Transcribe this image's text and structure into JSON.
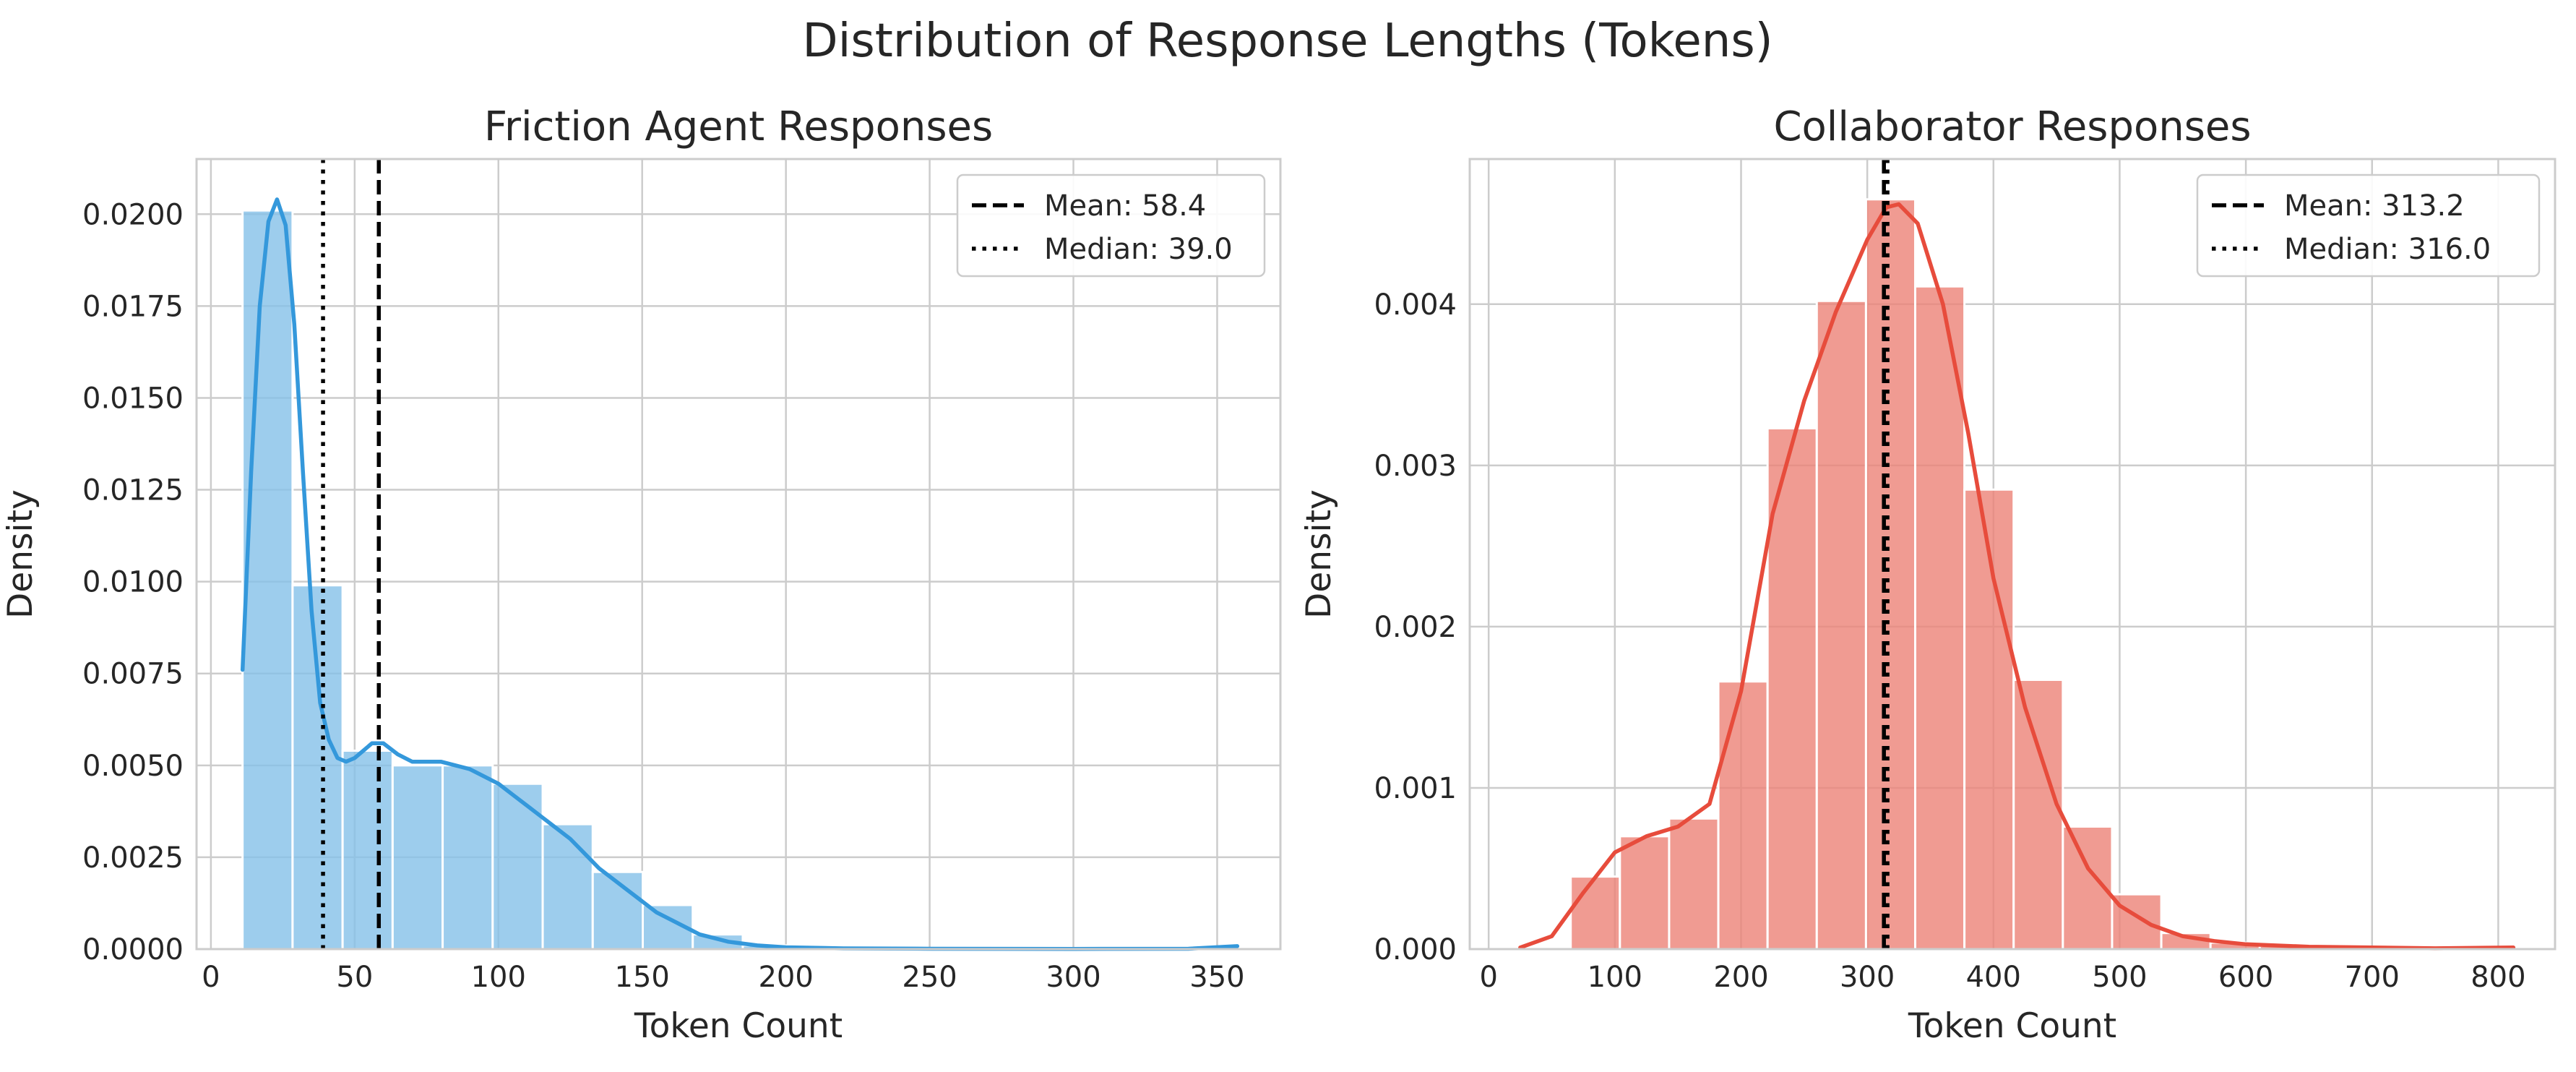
{
  "figure_title": "Distribution of Response Lengths (Tokens)",
  "chart_data": [
    {
      "type": "histogram",
      "title": "Friction Agent Responses",
      "xlabel": "Token Count",
      "ylabel": "Density",
      "xlim": [
        -5,
        372
      ],
      "ylim": [
        0,
        0.0215
      ],
      "xticks": [
        0,
        50,
        100,
        150,
        200,
        250,
        300,
        350
      ],
      "yticks": [
        0,
        0.0025,
        0.005,
        0.0075,
        0.01,
        0.0125,
        0.015,
        0.0175,
        0.02
      ],
      "ytick_decimals": 4,
      "grid": true,
      "legend_position": "top-right",
      "bar_color": "#85c1e9",
      "line_color": "#3498db",
      "bins": [
        {
          "x0": 11,
          "x1": 28.4,
          "density": 0.0201
        },
        {
          "x0": 28.4,
          "x1": 45.8,
          "density": 0.0099
        },
        {
          "x0": 45.8,
          "x1": 63.2,
          "density": 0.0054
        },
        {
          "x0": 63.2,
          "x1": 80.6,
          "density": 0.005
        },
        {
          "x0": 80.6,
          "x1": 98.0,
          "density": 0.005
        },
        {
          "x0": 98.0,
          "x1": 115.4,
          "density": 0.0045
        },
        {
          "x0": 115.4,
          "x1": 132.8,
          "density": 0.0034
        },
        {
          "x0": 132.8,
          "x1": 150.2,
          "density": 0.0021
        },
        {
          "x0": 150.2,
          "x1": 167.6,
          "density": 0.0012
        },
        {
          "x0": 167.6,
          "x1": 185.0,
          "density": 0.0004
        },
        {
          "x0": 185.0,
          "x1": 202.4,
          "density": 0.0001
        },
        {
          "x0": 202.4,
          "x1": 219.8,
          "density": 5e-05
        }
      ],
      "kde": {
        "x": [
          11,
          14,
          17,
          20,
          23,
          26,
          29,
          32,
          35,
          38,
          41,
          44,
          47,
          50,
          53,
          56,
          60,
          65,
          70,
          75,
          80,
          85,
          90,
          95,
          100,
          105,
          110,
          115,
          120,
          125,
          130,
          135,
          140,
          145,
          150,
          155,
          160,
          165,
          170,
          175,
          180,
          190,
          200,
          220,
          250,
          300,
          340,
          357
        ],
        "y": [
          0.0076,
          0.013,
          0.0175,
          0.0198,
          0.0204,
          0.0197,
          0.017,
          0.013,
          0.0092,
          0.0067,
          0.0057,
          0.0052,
          0.0051,
          0.0052,
          0.0054,
          0.0056,
          0.0056,
          0.0053,
          0.0051,
          0.0051,
          0.0051,
          0.005,
          0.0049,
          0.0047,
          0.0045,
          0.0042,
          0.0039,
          0.0036,
          0.0033,
          0.003,
          0.0026,
          0.0022,
          0.0019,
          0.0016,
          0.0013,
          0.001,
          0.0008,
          0.0006,
          0.0004,
          0.0003,
          0.0002,
          0.0001,
          5e-05,
          2e-05,
          1e-05,
          5e-06,
          1e-05,
          8e-05
        ]
      },
      "mean": 58.4,
      "median": 39.0,
      "legend": [
        {
          "style": "dashed",
          "label": "Mean: 58.4"
        },
        {
          "style": "dotted",
          "label": "Median: 39.0"
        }
      ]
    },
    {
      "type": "histogram",
      "title": "Collaborator Responses",
      "xlabel": "Token Count",
      "ylabel": "Density",
      "xlim": [
        -15,
        845
      ],
      "ylim": [
        0,
        0.0049
      ],
      "xticks": [
        0,
        100,
        200,
        300,
        400,
        500,
        600,
        700,
        800
      ],
      "yticks": [
        0,
        0.001,
        0.002,
        0.003,
        0.004
      ],
      "ytick_decimals": 3,
      "grid": true,
      "legend_position": "top-right",
      "bar_color": "#ec8277",
      "line_color": "#e74c3c",
      "bins": [
        {
          "x0": 65,
          "x1": 104,
          "density": 0.00045
        },
        {
          "x0": 104,
          "x1": 143,
          "density": 0.0007
        },
        {
          "x0": 143,
          "x1": 182,
          "density": 0.00081
        },
        {
          "x0": 182,
          "x1": 221,
          "density": 0.00166
        },
        {
          "x0": 221,
          "x1": 260,
          "density": 0.00323
        },
        {
          "x0": 260,
          "x1": 299,
          "density": 0.00402
        },
        {
          "x0": 299,
          "x1": 338,
          "density": 0.00465
        },
        {
          "x0": 338,
          "x1": 377,
          "density": 0.00411
        },
        {
          "x0": 377,
          "x1": 416,
          "density": 0.00285
        },
        {
          "x0": 416,
          "x1": 455,
          "density": 0.00167
        },
        {
          "x0": 455,
          "x1": 494,
          "density": 0.00076
        },
        {
          "x0": 494,
          "x1": 533,
          "density": 0.00034
        },
        {
          "x0": 533,
          "x1": 572,
          "density": 0.0001
        },
        {
          "x0": 572,
          "x1": 611,
          "density": 4e-05
        },
        {
          "x0": 611,
          "x1": 650,
          "density": 2e-05
        }
      ],
      "kde": {
        "x": [
          25,
          50,
          75,
          100,
          125,
          150,
          175,
          200,
          225,
          250,
          275,
          300,
          315,
          325,
          340,
          360,
          380,
          400,
          425,
          450,
          475,
          500,
          525,
          550,
          575,
          600,
          650,
          700,
          750,
          812
        ],
        "y": [
          1e-05,
          8e-05,
          0.00035,
          0.0006,
          0.0007,
          0.00076,
          0.0009,
          0.0016,
          0.0027,
          0.0034,
          0.00395,
          0.0044,
          0.0046,
          0.00462,
          0.0045,
          0.004,
          0.0032,
          0.0023,
          0.0015,
          0.0009,
          0.0005,
          0.00027,
          0.00015,
          8e-05,
          5e-05,
          3e-05,
          1.5e-05,
          1e-05,
          5e-06,
          1e-05
        ]
      },
      "mean": 313.2,
      "median": 316.0,
      "legend": [
        {
          "style": "dashed",
          "label": "Mean: 313.2"
        },
        {
          "style": "dotted",
          "label": "Median: 316.0"
        }
      ]
    }
  ]
}
